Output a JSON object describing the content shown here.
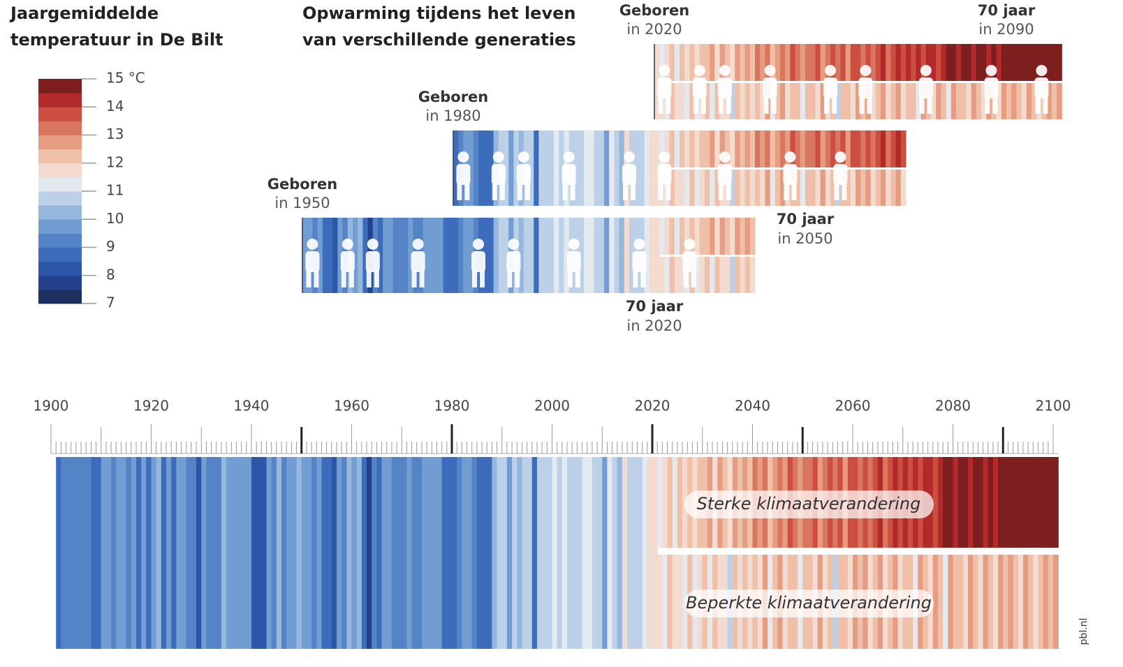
{
  "chart_data": {
    "type": "stripes",
    "legend_title": [
      "Jaargemiddelde",
      "temperatuur in De Bilt"
    ],
    "title": [
      "Opwarming tijdens het leven",
      "van verschillende generaties"
    ],
    "colorscale": {
      "clim": [
        7,
        15
      ],
      "colors": [
        "#1d2f5e",
        "#24418e",
        "#2c56a8",
        "#3c6cbb",
        "#5584c6",
        "#719dd2",
        "#95b7de",
        "#bcd1e8",
        "#e4e9f0",
        "#f3dbd0",
        "#efbfa8",
        "#e59c81",
        "#d97660",
        "#cc4e40",
        "#b22a2a",
        "#7c1f1e"
      ],
      "ticks": [
        7,
        8,
        9,
        10,
        11,
        12,
        13,
        14,
        {
          "value": 15,
          "label": "15 °C"
        }
      ]
    },
    "xlim": [
      1900,
      2100
    ],
    "xticks": [
      1900,
      1920,
      1940,
      1960,
      1980,
      2000,
      2020,
      2040,
      2060,
      2080,
      2100
    ],
    "historic": {
      "start_year": 1901,
      "values": [
        8.9,
        9.3,
        9.4,
        9.2,
        9.0,
        9.4,
        9.3,
        8.9,
        8.7,
        9.6,
        9.8,
        9.2,
        9.6,
        9.7,
        9.0,
        9.5,
        8.6,
        9.7,
        8.6,
        9.8,
        10.1,
        8.5,
        9.5,
        8.8,
        9.5,
        9.7,
        9.2,
        9.4,
        8.4,
        9.8,
        9.0,
        9.3,
        9.3,
        10.3,
        9.5,
        9.6,
        9.9,
        9.8,
        9.7,
        8.2,
        8.3,
        8.4,
        9.9,
        9.3,
        10.0,
        9.2,
        9.5,
        9.7,
        10.2,
        9.7,
        9.5,
        9.2,
        9.7,
        8.9,
        8.9,
        8.4,
        9.8,
        9.2,
        10.4,
        9.8,
        10.0,
        8.6,
        7.8,
        9.2,
        8.8,
        9.5,
        9.9,
        9.2,
        9.0,
        9.0,
        9.5,
        9.0,
        9.3,
        9.7,
        9.5,
        9.7,
        9.6,
        8.9,
        8.6,
        8.9,
        9.2,
        9.9,
        9.9,
        9.2,
        8.5,
        8.6,
        8.7,
        10.3,
        10.6,
        10.7,
        9.8,
        10.6,
        10.0,
        10.8,
        10.5,
        8.9,
        10.5,
        10.6,
        10.9,
        11.0,
        10.6,
        11.1,
        10.7,
        10.6,
        10.8,
        11.3,
        11.2,
        10.8,
        10.9,
        9.9,
        11.3,
        10.6,
        10.3,
        11.7,
        10.7,
        10.7,
        10.9,
        11.3,
        11.5,
        11.6
      ]
    },
    "series": [
      {
        "name": "Sterke klimaatverandering",
        "start_year": 2021,
        "values": [
          11.4,
          11.9,
          12.0,
          11.3,
          12.1,
          11.8,
          12.3,
          11.6,
          12.4,
          12.1,
          12.5,
          11.9,
          12.6,
          12.2,
          11.7,
          12.8,
          12.4,
          12.9,
          12.3,
          13.0,
          12.6,
          13.2,
          12.4,
          12.9,
          13.3,
          12.7,
          13.5,
          13.1,
          12.8,
          13.4,
          13.0,
          13.6,
          12.9,
          13.3,
          13.7,
          13.1,
          13.5,
          12.8,
          13.6,
          13.8,
          13.2,
          13.9,
          13.4,
          13.7,
          14.0,
          13.3,
          13.8,
          14.1,
          13.6,
          14.0,
          13.7,
          14.2,
          13.9,
          14.0,
          14.3,
          13.8,
          14.2,
          14.5,
          14.6,
          14.1,
          14.5,
          14.8,
          14.2,
          14.6,
          14.9,
          14.4,
          14.7,
          14.3,
          14.8,
          14.6,
          14.9,
          14.5,
          14.8,
          15.0,
          14.7,
          14.9,
          14.6,
          15.1,
          14.8,
          15.0
        ]
      },
      {
        "name": "Beperkte klimaatverandering",
        "start_year": 2021,
        "values": [
          11.6,
          11.2,
          12.0,
          11.5,
          11.8,
          11.0,
          12.2,
          11.4,
          11.9,
          12.1,
          11.3,
          12.3,
          11.7,
          11.9,
          10.9,
          12.4,
          11.8,
          12.0,
          11.5,
          12.3,
          11.9,
          12.5,
          11.4,
          12.1,
          12.6,
          11.6,
          12.0,
          12.4,
          11.2,
          12.2,
          12.3,
          11.7,
          12.5,
          11.9,
          12.2,
          10.8,
          12.4,
          12.1,
          11.6,
          12.6,
          12.0,
          12.7,
          11.8,
          12.3,
          12.5,
          11.5,
          12.2,
          12.8,
          11.9,
          12.4,
          12.1,
          11.4,
          12.6,
          12.3,
          11.8,
          12.7,
          12.0,
          11.3,
          12.5,
          12.2,
          12.4,
          11.9,
          12.8,
          12.1,
          11.6,
          12.6,
          12.3,
          11.7,
          12.5,
          12.0,
          12.7,
          12.2,
          11.8,
          12.6,
          12.4,
          11.5,
          12.3,
          12.8,
          12.1,
          12.5
        ]
      }
    ],
    "generations": [
      {
        "born": 1950,
        "born_label": "Geboren",
        "born_year_label": "in 1950",
        "age": 70,
        "age_label": "70 jaar",
        "age_year_label": "in 2020"
      },
      {
        "born": 1980,
        "born_label": "Geboren",
        "born_year_label": "in 1980",
        "age": 70,
        "age_label": "70 jaar",
        "age_year_label": "in 2050"
      },
      {
        "born": 2020,
        "born_label": "Geboren",
        "born_year_label": "in 2020",
        "age": 70,
        "age_label": "70 jaar",
        "age_year_label": "in 2090"
      }
    ],
    "source": "pbl.nl"
  }
}
